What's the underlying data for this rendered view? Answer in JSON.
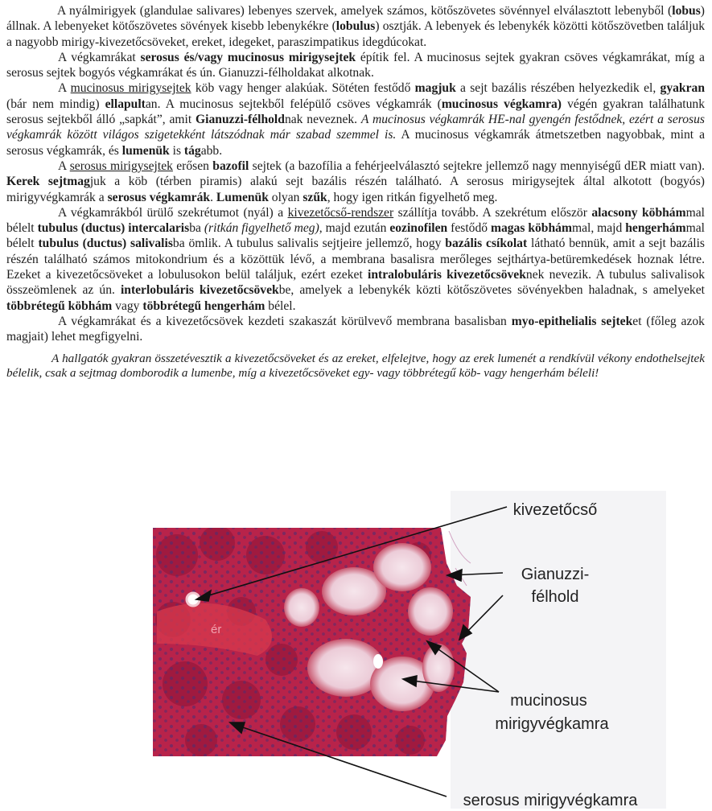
{
  "paragraphs": [
    {
      "style": "first",
      "parts": [
        {
          "t": "A nyálmirigyek (glandulae salivares) lebenyes szervek, amelyek számos, kötőszövetes sövénnyel elválasztott lebenyből ("
        },
        {
          "t": "lobus",
          "b": true
        },
        {
          "t": ") állnak. A lebenyeket kötőszövetes sövények kisebb lebenykékre ("
        },
        {
          "t": "lobulus",
          "b": true
        },
        {
          "t": ") osztják. A lebenyek és lebenykék közötti kötőszövetben találjuk a nagyobb mirigy-kivezetőcsöveket, ereket, idegeket, paraszimpatikus idegdúcokat."
        }
      ]
    },
    {
      "style": "",
      "parts": [
        {
          "t": "A végkamrákat "
        },
        {
          "t": "serosus és/vagy mucinosus mirigysejtek",
          "b": true
        },
        {
          "t": " építik fel. A mucinosus sejtek gyakran csöves végkamrákat, míg a serosus sejtek bogyós végkamrákat és ún. Gianuzzi-félholdakat alkotnak."
        }
      ]
    },
    {
      "style": "",
      "parts": [
        {
          "t": "A "
        },
        {
          "t": "mucinosus mirigysejtek",
          "u": true
        },
        {
          "t": " köb vagy henger alakúak. Sötéten festődő "
        },
        {
          "t": "magjuk",
          "b": true
        },
        {
          "t": " a sejt bazális részében helyezkedik el, "
        },
        {
          "t": "gyakran",
          "b": true
        },
        {
          "t": " (bár nem mindig) "
        },
        {
          "t": "ellapult",
          "b": true
        },
        {
          "t": "an. A mucinosus sejtekből felépülő csöves végkamrák ("
        },
        {
          "t": "mucinosus végkamra)",
          "b": true
        },
        {
          "t": " végén gyakran találhatunk serosus sejtekből álló „sapkát”, amit "
        },
        {
          "t": "Gianuzzi-félhold",
          "b": true
        },
        {
          "t": "nak neveznek. "
        },
        {
          "t": "A mucinosus végkamrák HE-nal gyengén festődnek, ezért a serosus végkamrák között világos szigetekként látszódnak már szabad szemmel is.",
          "i": true
        },
        {
          "t": " A mucinosus végkamrák átmetszetben nagyobbak, mint a serosus végkamrák, és "
        },
        {
          "t": "lumenük",
          "b": true
        },
        {
          "t": " is "
        },
        {
          "t": "tág",
          "b": true
        },
        {
          "t": "abb."
        }
      ]
    },
    {
      "style": "",
      "parts": [
        {
          "t": "A "
        },
        {
          "t": "serosus mirigysejtek",
          "u": true
        },
        {
          "t": " erősen "
        },
        {
          "t": "bazofil",
          "b": true
        },
        {
          "t": " sejtek (a bazofília a fehérjeelválasztó sejtekre jellemző nagy mennyiségű dER miatt van). "
        },
        {
          "t": "Kerek sejtmag",
          "b": true
        },
        {
          "t": "juk a köb (térben piramis) alakú sejt bazális részén található. A serosus mirigysejtek által alkotott (bogyós) mirigyvégkamrák a "
        },
        {
          "t": "serosus végkamrák",
          "b": true
        },
        {
          "t": ". "
        },
        {
          "t": "Lumenük",
          "b": true
        },
        {
          "t": " olyan "
        },
        {
          "t": "szűk",
          "b": true
        },
        {
          "t": ", hogy igen ritkán figyelhető meg."
        }
      ]
    },
    {
      "style": "",
      "parts": [
        {
          "t": "A végkamrákból ürülő szekrétumot (nyál) a "
        },
        {
          "t": "kivezetőcső-rendszer",
          "u": true
        },
        {
          "t": " szállítja tovább. A szekrétum először "
        },
        {
          "t": "alacsony köbhám",
          "b": true
        },
        {
          "t": "mal bélelt "
        },
        {
          "t": "tubulus (ductus) intercalaris",
          "b": true
        },
        {
          "t": "ba "
        },
        {
          "t": "(ritkán figyelhető meg)",
          "i": true
        },
        {
          "t": ", majd ezután "
        },
        {
          "t": "eozinofilen",
          "b": true
        },
        {
          "t": " festődő "
        },
        {
          "t": "magas köbhám",
          "b": true
        },
        {
          "t": "mal, majd "
        },
        {
          "t": "hengerhám",
          "b": true
        },
        {
          "t": "mal bélelt "
        },
        {
          "t": "tubulus (ductus) salivalis",
          "b": true
        },
        {
          "t": "ba ömlik. A tubulus salivalis sejtjeire jellemző, hogy "
        },
        {
          "t": "bazális csíkolat",
          "b": true
        },
        {
          "t": " látható bennük, amit a sejt bazális részén található számos mitokondrium és a közöttük lévő, a membrana basalisra merőleges sejthártya-betüremkedések hoznak létre. Ezeket a kivezetőcsöveket a lobulusokon belül találjuk, ezért ezeket "
        },
        {
          "t": "intralobuláris kivezetőcsövek",
          "b": true
        },
        {
          "t": "nek nevezik. A tubulus salivalisok összeömlenek az ún. "
        },
        {
          "t": "interlobuláris kivezetőcsövek",
          "b": true
        },
        {
          "t": "be, amelyek a lebenykék közti kötőszövetes sövényekben haladnak, s amelyeket "
        },
        {
          "t": "többrétegű köbhám",
          "b": true
        },
        {
          "t": " vagy "
        },
        {
          "t": "többrétegű hengerhám",
          "b": true
        },
        {
          "t": " bélel."
        }
      ]
    },
    {
      "style": "",
      "parts": [
        {
          "t": "A végkamrákat és a kivezetőcsövek kezdeti szakaszát körülvevő membrana basalisban "
        },
        {
          "t": "myo-epithelialis sejtek",
          "b": true
        },
        {
          "t": "et (főleg azok magjait) lehet megfigyelni."
        }
      ]
    },
    {
      "style": "note",
      "parts": [
        {
          "t": "A hallgatók gyakran összetévesztik a kivezetőcsöveket és az ereket, elfelejtve, hogy az erek lumenét a rendkívül vékony endothelsejtek bélelik, csak a sejtmag domborodik a lumenbe, míg a kivezetőcsöveket egy- vagy többrétegű köb- vagy hengerhám béleli!"
        }
      ]
    }
  ],
  "figure": {
    "labels": {
      "kivezetocso": "kivezetőcső",
      "gianuzzi_1": "Gianuzzi-",
      "gianuzzi_2": "félhold",
      "mucinosus_1": "mucinosus",
      "mucinosus_2": "mirigyvégkamra",
      "serosus": "serosus mirigyvégkamra",
      "er": "ér"
    },
    "colors": {
      "tissue_base": "#b8234a",
      "tissue_dark": "#8c1437",
      "mucous": "#efd3dd",
      "nuclei": "#4b2d72",
      "vessel": "#d83a4e"
    }
  }
}
